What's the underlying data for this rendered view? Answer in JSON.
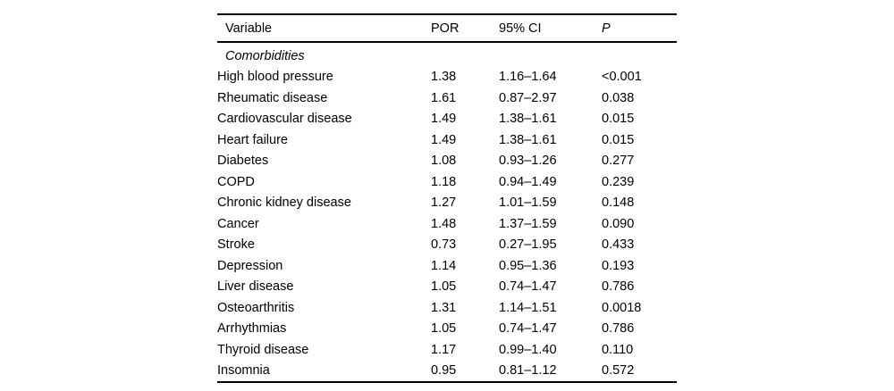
{
  "table": {
    "columns": [
      "Variable",
      "POR",
      "95% CI",
      "P"
    ],
    "section": "Comorbidities",
    "rows": [
      {
        "variable": "High blood pressure",
        "por": "1.38",
        "ci": "1.16–1.64",
        "p": "<0.001"
      },
      {
        "variable": "Rheumatic disease",
        "por": "1.61",
        "ci": "0.87–2.97",
        "p": "0.038"
      },
      {
        "variable": "Cardiovascular disease",
        "por": "1.49",
        "ci": "1.38–1.61",
        "p": "0.015"
      },
      {
        "variable": "Heart failure",
        "por": "1.49",
        "ci": "1.38–1.61",
        "p": "0.015"
      },
      {
        "variable": "Diabetes",
        "por": "1.08",
        "ci": "0.93–1.26",
        "p": "0.277"
      },
      {
        "variable": "COPD",
        "por": "1.18",
        "ci": "0.94–1.49",
        "p": "0.239"
      },
      {
        "variable": "Chronic kidney disease",
        "por": "1.27",
        "ci": "1.01–1.59",
        "p": "0.148"
      },
      {
        "variable": "Cancer",
        "por": "1.48",
        "ci": "1.37–1.59",
        "p": "0.090"
      },
      {
        "variable": "Stroke",
        "por": "0.73",
        "ci": "0.27–1.95",
        "p": "0.433"
      },
      {
        "variable": "Depression",
        "por": "1.14",
        "ci": "0.95–1.36",
        "p": "0.193"
      },
      {
        "variable": "Liver disease",
        "por": "1.05",
        "ci": "0.74–1.47",
        "p": "0.786"
      },
      {
        "variable": "Osteoarthritis",
        "por": "1.31",
        "ci": "1.14–1.51",
        "p": "0.0018"
      },
      {
        "variable": "Arrhythmias",
        "por": "1.05",
        "ci": "0.74–1.47",
        "p": "0.786"
      },
      {
        "variable": "Thyroid disease",
        "por": "1.17",
        "ci": "0.99–1.40",
        "p": "0.110"
      },
      {
        "variable": "Insomnia",
        "por": "0.95",
        "ci": "0.81–1.12",
        "p": "0.572"
      }
    ],
    "colors": {
      "text": "#000000",
      "rule": "#000000",
      "background": "#ffffff"
    }
  }
}
